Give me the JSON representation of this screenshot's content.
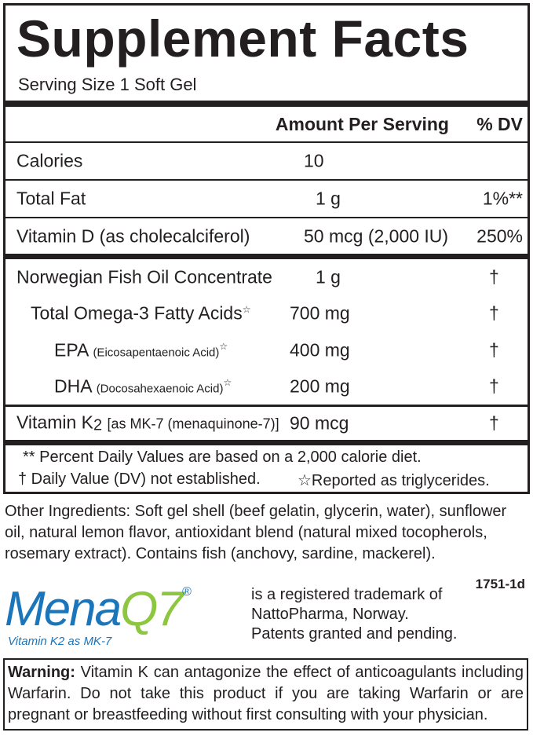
{
  "title": "Supplement Facts",
  "serving_size": "Serving Size 1 Soft Gel",
  "header": {
    "amount": "Amount Per Serving",
    "dv": "% DV"
  },
  "rows": [
    {
      "name": "Calories",
      "amount": "10"
    },
    {
      "name": "Total Fat",
      "amount": "1 g",
      "dv": "1%**"
    },
    {
      "name": "Vitamin D (as cholecalciferol)",
      "amount": "50 mcg (2,000 IU)",
      "dv": "250%"
    },
    {
      "name": "Norwegian Fish Oil Concentrate",
      "amount": "1 g",
      "dv": "†"
    },
    {
      "name": "Total Omega-3 Fatty Acids",
      "mark": "☆",
      "amount": "700 mg",
      "dv": "†"
    },
    {
      "name": "EPA",
      "detail": "(Eicosapentaenoic Acid)",
      "mark": "☆",
      "amount": "400 mg",
      "dv": "†"
    },
    {
      "name": "DHA",
      "detail": "(Docosahexaenoic Acid)",
      "mark": "☆",
      "amount": "200 mg",
      "dv": "†"
    },
    {
      "name": "Vitamin K",
      "subscript": "2",
      "detail": "[as MK-7 (menaquinone-7)]",
      "amount": "90 mcg",
      "dv": "†"
    }
  ],
  "footnotes": [
    "** Percent Daily Values are based on a 2,000 calorie diet.",
    "† Daily Value (DV) not established.",
    "☆Reported as triglycerides."
  ],
  "other_ingredients": "Other Ingredients: Soft gel shell (beef gelatin, glycerin, water), sunflower oil, natural lemon flavor, antioxidant blend (natural mixed tocopherols, rosemary extract). Contains fish (anchovy, sardine, mackerel).",
  "code": "1751-1d",
  "logo": {
    "mena": "Mena",
    "q7": "Q7",
    "reg": "®",
    "tagline": "Vitamin K2 as MK-7"
  },
  "trademark": [
    "is a registered trademark of",
    "NattoPharma, Norway.",
    "Patents granted and pending."
  ],
  "warning": {
    "label": "Warning:",
    "text": "Vitamin K can antagonize the effect of anticoagulants including Warfarin. Do not take this product if you are taking Warfarin or are pregnant or breastfeeding without first consulting with your physician."
  }
}
